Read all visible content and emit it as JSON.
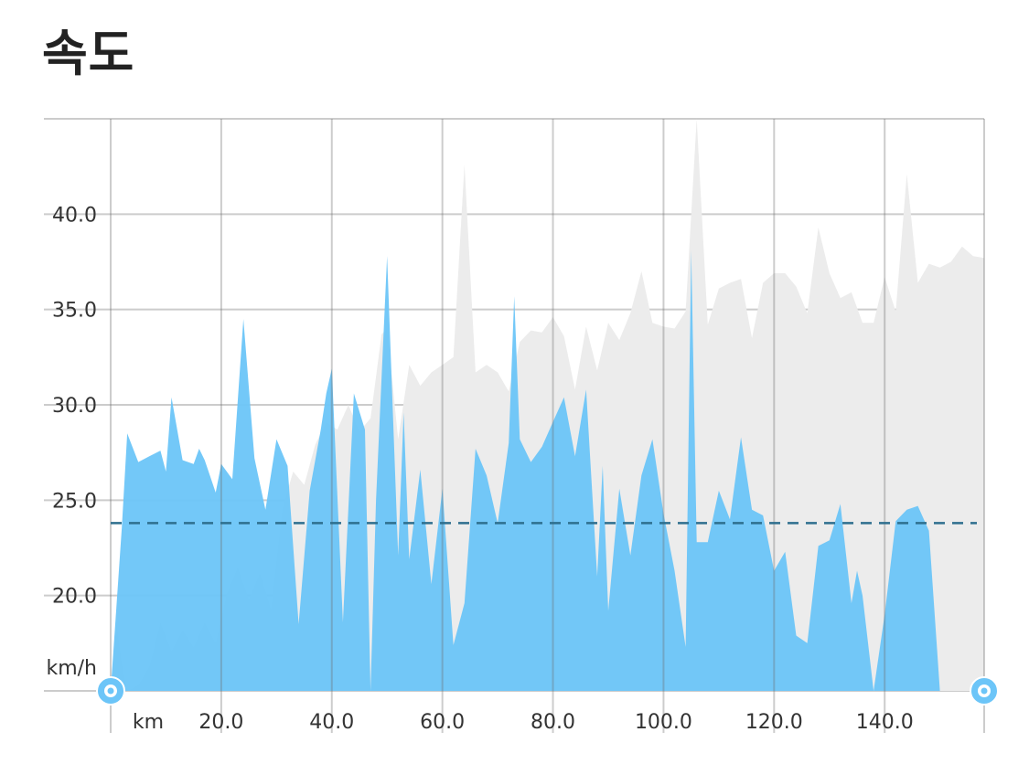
{
  "page": {
    "title": "속도"
  },
  "colors": {
    "current": "#6cc5f8",
    "comparison": "#ececec",
    "average_line": "#2e6f8e",
    "grid": "#cccccc",
    "handle": "#6cc5f8"
  },
  "chart_data": {
    "type": "area",
    "title": "",
    "xlabel": "",
    "ylabel": "",
    "x_unit": "km",
    "y_unit": "km/h",
    "xlim": [
      0,
      158
    ],
    "ylim": [
      15,
      45
    ],
    "x_ticks": [
      "20.0",
      "40.0",
      "60.0",
      "80.0",
      "100.0",
      "120.0",
      "140.0"
    ],
    "y_ticks": [
      "20.0",
      "25.0",
      "30.0",
      "35.0",
      "40.0"
    ],
    "grid": true,
    "average": 23.8,
    "range_handles": [
      "start",
      "end"
    ],
    "series": [
      {
        "role": "comparison",
        "color": "gray",
        "x": [
          0,
          1,
          2,
          3,
          5,
          7,
          9,
          11,
          13,
          15,
          17,
          19,
          21,
          23,
          25,
          27,
          29,
          31,
          33,
          35,
          37,
          39,
          41,
          43,
          45,
          47,
          49,
          50,
          52,
          54,
          56,
          58,
          60,
          62,
          64,
          66,
          68,
          70,
          72,
          74,
          76,
          78,
          80,
          82,
          84,
          86,
          88,
          90,
          92,
          94,
          96,
          98,
          100,
          102,
          104,
          106,
          108,
          110,
          112,
          114,
          116,
          118,
          120,
          122,
          124,
          126,
          128,
          130,
          132,
          134,
          136,
          138,
          140,
          142,
          144,
          146,
          148,
          150,
          152,
          154,
          156,
          158
        ],
        "values": [
          15,
          18.8,
          16.5,
          15.0,
          15.3,
          16.3,
          18.6,
          17.1,
          18.2,
          17.3,
          18.6,
          17.5,
          20.1,
          21.5,
          19.8,
          21.2,
          19.3,
          24.5,
          26.5,
          25.8,
          27.9,
          29.1,
          28.7,
          30.0,
          28.6,
          29.3,
          33.7,
          34.0,
          28.2,
          32.1,
          31.0,
          31.7,
          32.1,
          32.5,
          42.6,
          31.7,
          32.1,
          31.7,
          30.7,
          33.3,
          33.9,
          33.8,
          34.6,
          33.6,
          30.8,
          34.1,
          31.8,
          34.3,
          33.4,
          34.8,
          37.0,
          34.3,
          34.1,
          34.0,
          34.9,
          45.0,
          34.2,
          36.1,
          36.4,
          36.6,
          33.5,
          36.4,
          36.9,
          36.9,
          36.2,
          34.8,
          39.3,
          36.9,
          35.6,
          35.9,
          34.3,
          34.3,
          36.7,
          34.9,
          42.1,
          36.4,
          37.4,
          37.2,
          37.5,
          38.3,
          37.8,
          37.7
        ]
      },
      {
        "role": "current",
        "color": "blue",
        "x": [
          0,
          2,
          3,
          5,
          7,
          9,
          10,
          11,
          13,
          15,
          16,
          17,
          19,
          20,
          22,
          24,
          26,
          28,
          30,
          32,
          34,
          36,
          38,
          39,
          40,
          42,
          44,
          46,
          47,
          48,
          50,
          52,
          53,
          54,
          56,
          58,
          60,
          62,
          64,
          66,
          68,
          70,
          72,
          73,
          74,
          76,
          78,
          80,
          82,
          84,
          86,
          88,
          89,
          90,
          92,
          94,
          96,
          98,
          100,
          102,
          104,
          105,
          106,
          108,
          110,
          112,
          114,
          116,
          118,
          120,
          122,
          124,
          126,
          128,
          130,
          132,
          134,
          135,
          136,
          138,
          140,
          142,
          144,
          146,
          148,
          150,
          152,
          154,
          156,
          158
        ],
        "values": [
          15,
          23.5,
          28.5,
          27.0,
          27.3,
          27.6,
          26.5,
          30.4,
          27.1,
          26.9,
          27.7,
          27.1,
          25.4,
          26.9,
          26.1,
          34.5,
          27.2,
          24.5,
          28.2,
          26.8,
          18.5,
          25.5,
          28.7,
          30.6,
          31.9,
          18.6,
          30.6,
          28.7,
          15.0,
          25.0,
          37.8,
          22.1,
          29.6,
          21.9,
          26.6,
          20.6,
          25.6,
          17.4,
          19.6,
          27.7,
          26.3,
          23.8,
          28.0,
          35.7,
          28.2,
          27.0,
          27.8,
          29.1,
          30.4,
          27.3,
          30.8,
          21.0,
          26.8,
          19.2,
          25.6,
          22.1,
          26.3,
          28.2,
          24.3,
          21.3,
          17.3,
          38.1,
          22.8,
          22.8,
          25.5,
          24.0,
          28.3,
          24.5,
          24.2,
          21.3,
          22.3,
          17.9,
          17.5,
          22.6,
          22.9,
          24.8,
          19.6,
          21.3,
          20.0,
          15.0,
          19.0,
          23.9,
          24.5,
          24.7,
          23.4,
          15.0,
          15.0,
          15.0,
          15.0,
          15.0
        ]
      }
    ]
  }
}
